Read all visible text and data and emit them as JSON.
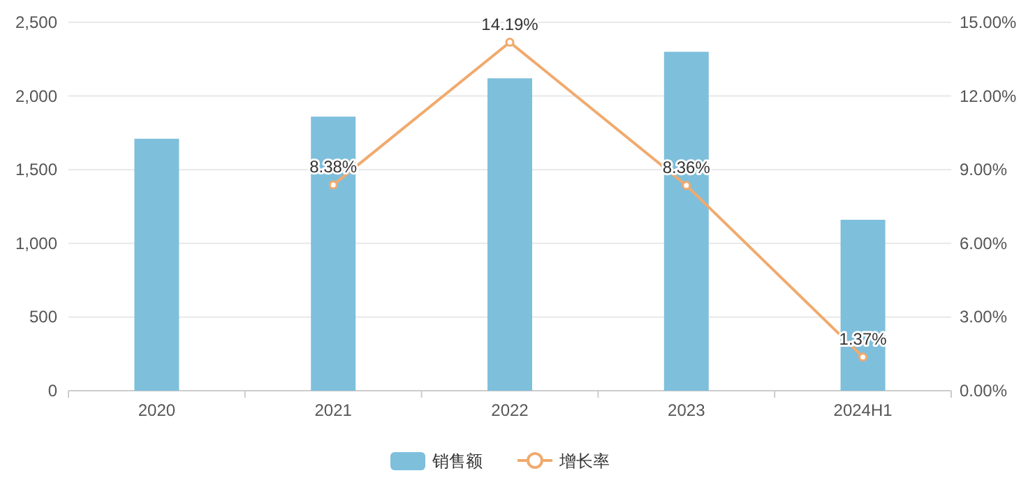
{
  "chart_data": {
    "type": "bar",
    "categories": [
      "2020",
      "2021",
      "2022",
      "2023",
      "2024H1"
    ],
    "series": [
      {
        "name": "销售额",
        "color": "#7ebfdc",
        "values": [
          1710,
          1860,
          2120,
          2300,
          1160
        ]
      },
      {
        "name": "增长率",
        "type": "line",
        "axis": "y2",
        "color": "#f0aa6e",
        "marker": "circle",
        "values": [
          null,
          8.38,
          14.19,
          8.36,
          1.37
        ],
        "value_labels": [
          null,
          "8.38%",
          "14.19%",
          "8.36%",
          "1.37%"
        ]
      }
    ],
    "ylim": [
      0,
      2500
    ],
    "yticks": [
      0,
      500,
      {
        "value": 1000,
        "label": "1,000"
      },
      {
        "value": 1500,
        "label": "1,500"
      },
      {
        "value": 2000,
        "label": "2,000"
      },
      {
        "value": 2500,
        "label": "2,500"
      }
    ],
    "y2lim": [
      0,
      15
    ],
    "y2ticks": [
      {
        "value": 0,
        "label": "0.00%"
      },
      {
        "value": 3,
        "label": "3.00%"
      },
      {
        "value": 6,
        "label": "6.00%"
      },
      {
        "value": 9,
        "label": "9.00%"
      },
      {
        "value": 12,
        "label": "12.00%"
      },
      {
        "value": 15,
        "label": "15.00%"
      }
    ],
    "grid": "y",
    "legend": "bottom"
  }
}
